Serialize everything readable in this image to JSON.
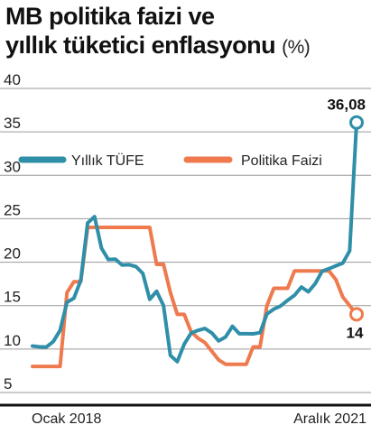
{
  "title": {
    "line1": "MB politika faizi ve",
    "line2": "yıllık tüketici enflasyonu",
    "unit": "(%)"
  },
  "colors": {
    "tufe": "#2f8fa8",
    "faiz": "#ee7a4e",
    "grid": "#9a9a9a",
    "axis": "#111111"
  },
  "chart_data": {
    "type": "line",
    "title": "MB politika faizi ve yıllık tüketici enflasyonu (%)",
    "ylim": [
      5,
      40
    ],
    "yticks": [
      5,
      10,
      15,
      20,
      25,
      30,
      35,
      40
    ],
    "xlim": [
      "2018-01",
      "2021-12"
    ],
    "x_labels": [
      "Ocak 2018",
      "Aralık 2021"
    ],
    "grid": true,
    "legend_position": "top-left",
    "x": [
      "2018-01",
      "2018-02",
      "2018-03",
      "2018-04",
      "2018-05",
      "2018-06",
      "2018-07",
      "2018-08",
      "2018-09",
      "2018-10",
      "2018-11",
      "2018-12",
      "2019-01",
      "2019-02",
      "2019-03",
      "2019-04",
      "2019-05",
      "2019-06",
      "2019-07",
      "2019-08",
      "2019-09",
      "2019-10",
      "2019-11",
      "2019-12",
      "2020-01",
      "2020-02",
      "2020-03",
      "2020-04",
      "2020-05",
      "2020-06",
      "2020-07",
      "2020-08",
      "2020-09",
      "2020-10",
      "2020-11",
      "2020-12",
      "2021-01",
      "2021-02",
      "2021-03",
      "2021-04",
      "2021-05",
      "2021-06",
      "2021-07",
      "2021-08",
      "2021-09",
      "2021-10",
      "2021-11",
      "2021-12"
    ],
    "series": [
      {
        "name": "Yıllık TÜFE",
        "color_key": "tufe",
        "values": [
          10.35,
          10.26,
          10.23,
          10.85,
          12.15,
          15.39,
          15.85,
          17.9,
          24.52,
          25.24,
          21.62,
          20.3,
          20.35,
          19.67,
          19.71,
          19.5,
          18.71,
          15.72,
          16.65,
          15.01,
          9.26,
          8.55,
          10.56,
          11.84,
          12.15,
          12.37,
          11.86,
          10.94,
          11.39,
          12.62,
          11.76,
          11.77,
          11.75,
          11.89,
          14.03,
          14.6,
          14.97,
          15.61,
          16.19,
          17.14,
          16.59,
          17.53,
          18.95,
          19.25,
          19.58,
          19.89,
          21.31,
          36.08
        ]
      },
      {
        "name": "Politika Faizi",
        "color_key": "faiz",
        "values": [
          8,
          8,
          8,
          8,
          8,
          16.5,
          17.75,
          17.75,
          24,
          24,
          24,
          24,
          24,
          24,
          24,
          24,
          24,
          24,
          19.75,
          19.75,
          16.5,
          14,
          14,
          12,
          11.25,
          10.75,
          9.75,
          8.75,
          8.25,
          8.25,
          8.25,
          8.25,
          10.25,
          10.25,
          15,
          17,
          17,
          17,
          19,
          19,
          19,
          19,
          19,
          19,
          18,
          16,
          15,
          14
        ]
      }
    ],
    "annotations": [
      {
        "text": "36,08",
        "series": "Yıllık TÜFE",
        "x": "2021-12",
        "y": 36.08
      },
      {
        "text": "14",
        "series": "Politika Faizi",
        "x": "2021-12",
        "y": 14
      }
    ]
  }
}
